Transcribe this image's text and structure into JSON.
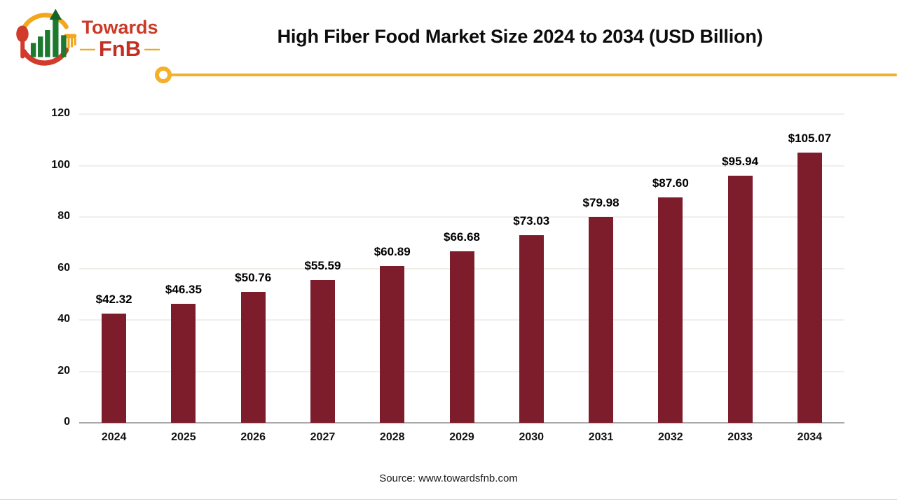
{
  "logo": {
    "brand_top": "Towards",
    "brand_bottom": "FnB",
    "dash": "—"
  },
  "header": {
    "title": "High Fiber Food Market Size 2024 to 2034 (USD Billion)"
  },
  "chart_data": {
    "type": "bar",
    "title": "High Fiber Food Market Size 2024 to 2034 (USD Billion)",
    "categories": [
      "2024",
      "2025",
      "2026",
      "2027",
      "2028",
      "2029",
      "2030",
      "2031",
      "2032",
      "2033",
      "2034"
    ],
    "values": [
      42.32,
      46.35,
      50.76,
      55.59,
      60.89,
      66.68,
      73.03,
      79.98,
      87.6,
      95.94,
      105.07
    ],
    "value_labels": [
      "$42.32",
      "$46.35",
      "$50.76",
      "$55.59",
      "$60.89",
      "$66.68",
      "$73.03",
      "$79.98",
      "$87.60",
      "$95.94",
      "$105.07"
    ],
    "xlabel": "",
    "ylabel": "",
    "ylim": [
      0,
      120
    ],
    "yticks": [
      0,
      20,
      40,
      60,
      80,
      100,
      120
    ],
    "grid": "horizontal-light",
    "legend": "none",
    "bar_color": "#7d1c2a"
  },
  "footer": {
    "source": "Source: www.towardsfnb.com"
  },
  "colors": {
    "accent_yellow": "#f4b02a",
    "bar_maroon": "#7d1c2a",
    "axis_gray": "#a8a8a8",
    "grid_gray": "#f1eeea",
    "logo_red": "#cb3a27",
    "logo_green": "#1b7a2e"
  }
}
